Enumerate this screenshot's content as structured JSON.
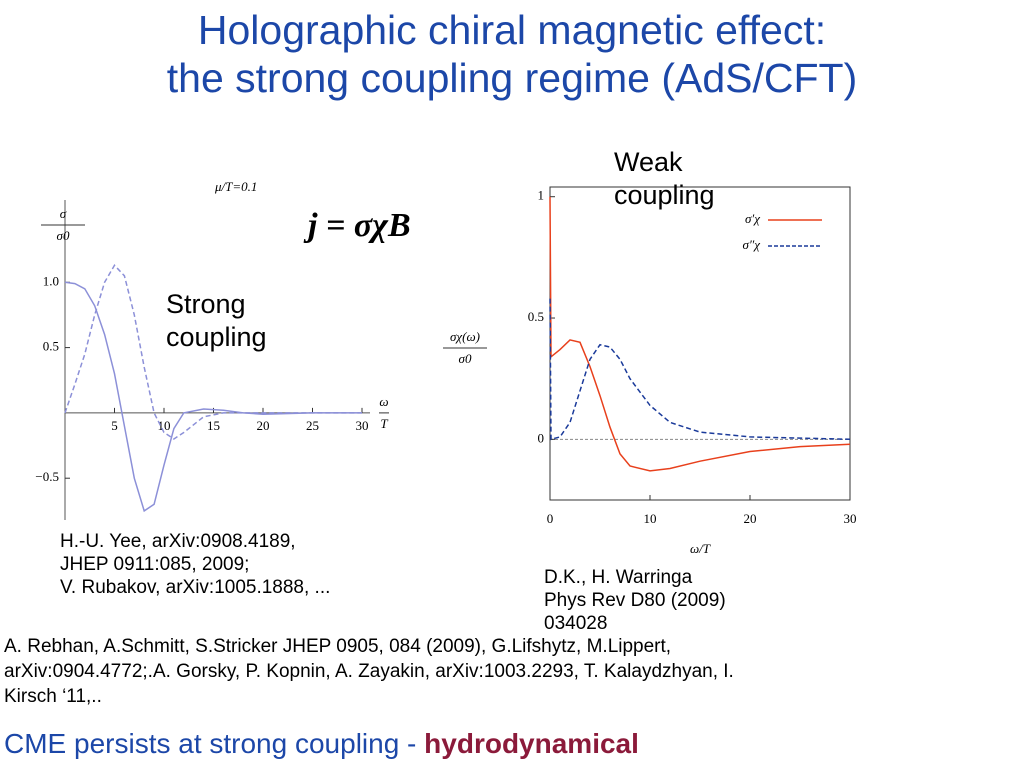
{
  "slide": {
    "title": [
      "Holographic chiral magnetic effect:",
      "the strong coupling regime (AdS/CFT)"
    ],
    "formula": "j = σχB",
    "strong_label": [
      "Strong",
      "coupling"
    ],
    "weak_label": [
      "Weak",
      "coupling"
    ],
    "citation_left": [
      "H.-U. Yee, arXiv:0908.4189,",
      "JHEP 0911:085, 2009;",
      "V. Rubakov, arXiv:1005.1888, ..."
    ],
    "citation_right": [
      "D.K., H. Warringa",
      "Phys Rev D80 (2009)",
      "034028"
    ],
    "references": [
      "A. Rebhan, A.Schmitt, S.Stricker JHEP 0905, 084 (2009), G.Lifshytz, M.Lippert,",
      "arXiv:0904.4772;.A. Gorsky, P. Kopnin, A. Zayakin, arXiv:1003.2293, T. Kalaydzhyan, I.",
      "Kirsch ‘11,.."
    ],
    "conclusion": "CME persists at strong coupling - ",
    "conclusion_bold": "hydrodynamical"
  },
  "chart_data": [
    {
      "type": "line",
      "title": "μ/T=0.1",
      "y_label": [
        "σ",
        "σ0"
      ],
      "x_label": [
        "ω",
        "T"
      ],
      "x": [
        0,
        1,
        2,
        3,
        4,
        5,
        6,
        7,
        8,
        9,
        10,
        11,
        12,
        14,
        16,
        18,
        20,
        25,
        30
      ],
      "xlim": [
        0,
        30
      ],
      "xticks": [
        5,
        10,
        15,
        20,
        25,
        30
      ],
      "ylim": [
        -0.82,
        1.63
      ],
      "yticks": [
        {
          "value": 1.0,
          "label": "1.0"
        },
        {
          "value": 0.5,
          "label": "0.5"
        },
        {
          "value": -0.5,
          "label": "−0.5"
        }
      ],
      "series": [
        {
          "color": "#8c90d8",
          "dash": false,
          "values": [
            1.0,
            0.99,
            0.95,
            0.82,
            0.6,
            0.3,
            -0.1,
            -0.5,
            -0.75,
            -0.7,
            -0.4,
            -0.12,
            0.0,
            0.03,
            0.02,
            0.0,
            -0.01,
            0.0,
            0.0
          ]
        },
        {
          "color": "#8c90d8",
          "dash": true,
          "values": [
            0,
            0.22,
            0.45,
            0.75,
            1.0,
            1.13,
            1.05,
            0.75,
            0.35,
            0.0,
            -0.15,
            -0.2,
            -0.15,
            -0.03,
            0.0,
            0.0,
            0.0,
            0.0,
            0.0
          ]
        }
      ]
    },
    {
      "type": "line",
      "y_label": [
        "σχ(ω)",
        "σ0"
      ],
      "x_label": "ω/T",
      "x": [
        0,
        0.1,
        1,
        2,
        3,
        4,
        5,
        6,
        7,
        8,
        10,
        12,
        15,
        20,
        25,
        30
      ],
      "xlim": [
        0,
        30
      ],
      "xticks": [
        0,
        10,
        20,
        30
      ],
      "ylim": [
        -0.25,
        1.04
      ],
      "yticks": [
        0,
        0.5,
        1
      ],
      "series": [
        {
          "name": "σ′χ",
          "color": "#e8401c",
          "dash": false,
          "values": [
            1,
            0.34,
            0.37,
            0.41,
            0.4,
            0.3,
            0.18,
            0.05,
            -0.06,
            -0.11,
            -0.13,
            -0.12,
            -0.09,
            -0.05,
            -0.03,
            -0.02
          ]
        },
        {
          "name": "σ″χ",
          "color": "#1a3a9a",
          "dash": true,
          "values": [
            0.58,
            0,
            0.01,
            0.07,
            0.2,
            0.33,
            0.39,
            0.38,
            0.33,
            0.25,
            0.14,
            0.07,
            0.03,
            0.01,
            0.005,
            0
          ]
        }
      ]
    }
  ]
}
